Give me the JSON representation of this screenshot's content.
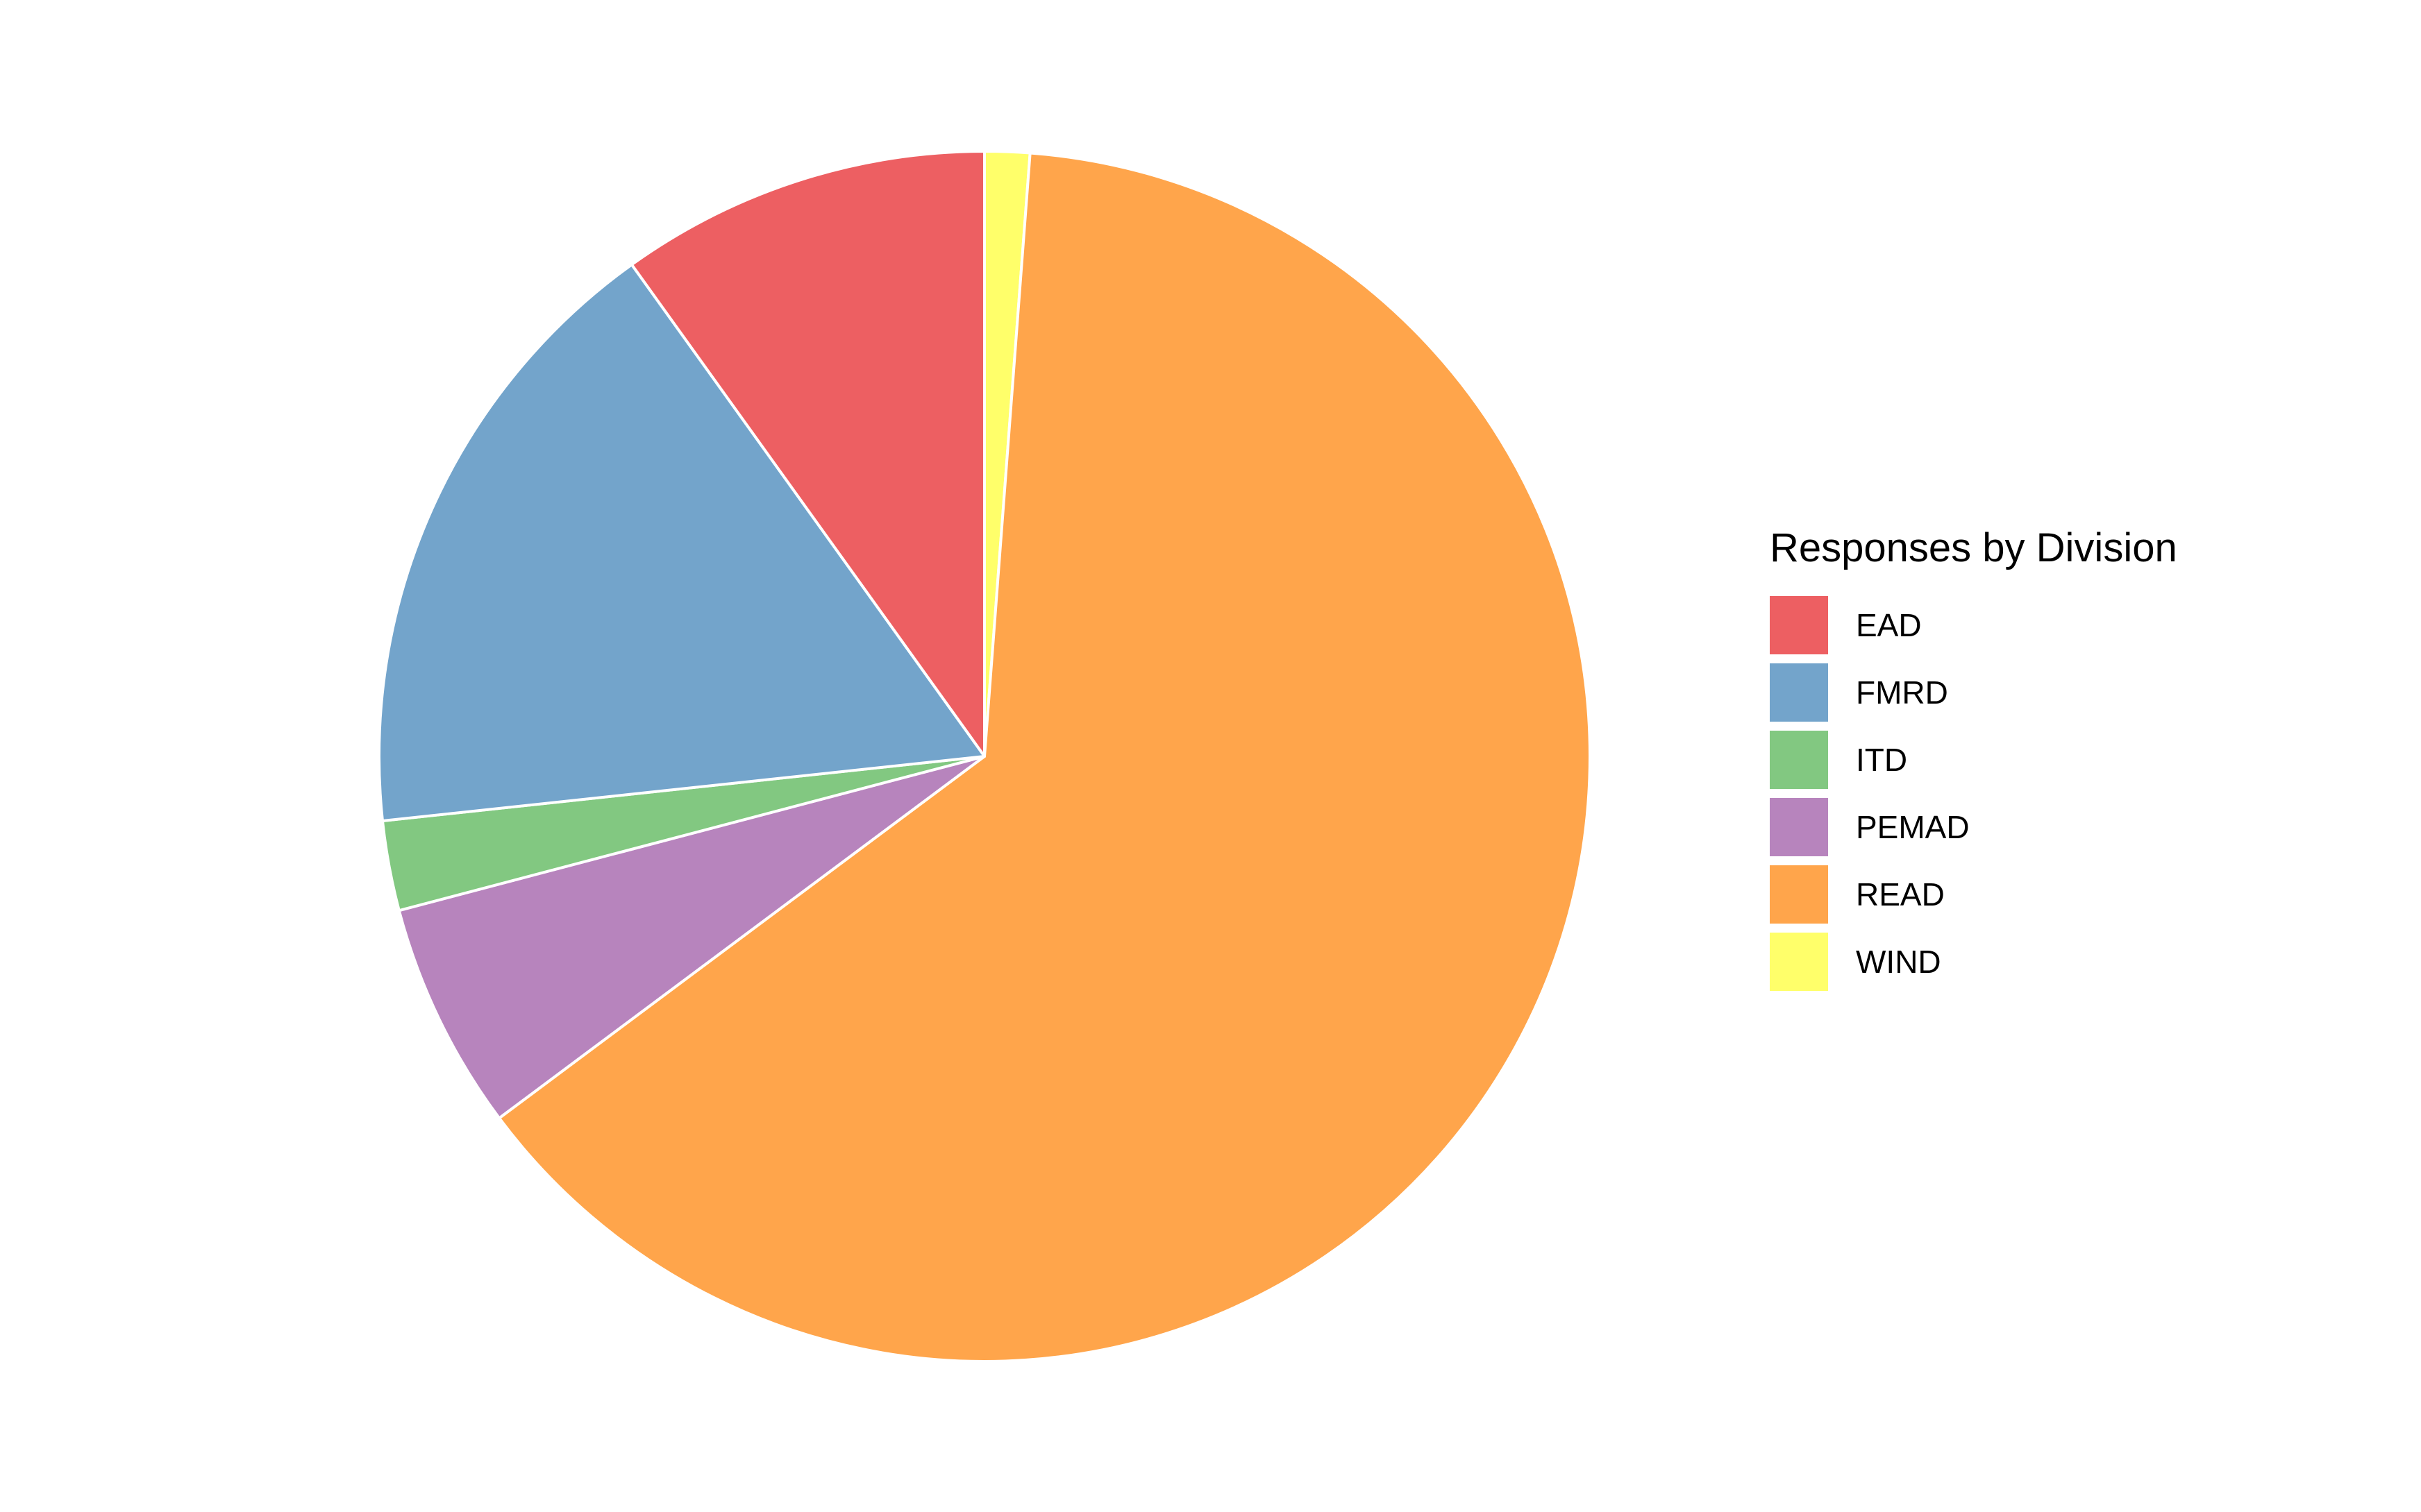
{
  "chart_data": {
    "type": "pie",
    "title": "",
    "legend_title": "Responses by Division",
    "legend_position": "right",
    "categories": [
      "EAD",
      "FMRD",
      "ITD",
      "PEMAD",
      "READ",
      "WIND"
    ],
    "values": [
      9.9,
      16.8,
      2.4,
      6.1,
      63.6,
      1.2
    ],
    "colors": [
      "#ED5F62",
      "#73A4CB",
      "#82C881",
      "#B784BD",
      "#FFA54B",
      "#FFFF6A"
    ],
    "slice_border_color": "#FFFFFF"
  }
}
